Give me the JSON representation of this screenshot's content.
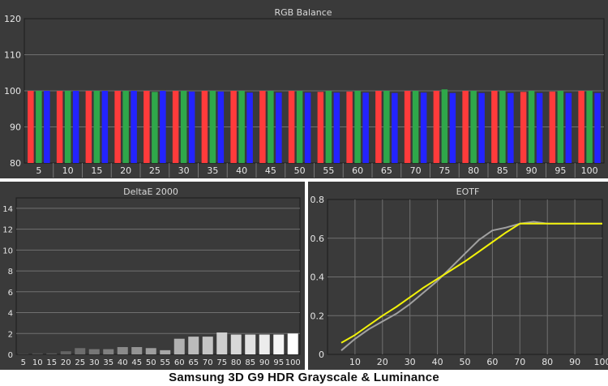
{
  "caption": "Samsung 3D G9 HDR Grayscale & Luminance",
  "chart_data": [
    {
      "type": "bar",
      "title": "RGB Balance",
      "categories": [
        "5",
        "10",
        "15",
        "20",
        "25",
        "30",
        "35",
        "40",
        "45",
        "50",
        "55",
        "60",
        "65",
        "70",
        "75",
        "80",
        "85",
        "90",
        "95",
        "100"
      ],
      "series": [
        {
          "color": "#ff3b3b",
          "values": [
            100,
            100,
            100,
            100,
            100,
            100,
            100,
            100,
            100,
            100,
            99.7,
            99.8,
            100,
            100,
            100,
            100,
            100,
            99.7,
            99.8,
            100
          ]
        },
        {
          "color": "#2fa84a",
          "values": [
            100,
            100,
            100,
            100,
            99.7,
            100,
            100,
            100,
            100,
            100,
            100,
            100,
            100,
            100,
            100.4,
            100,
            100,
            100,
            100,
            100
          ]
        },
        {
          "color": "#2323ff",
          "values": [
            100,
            100,
            100,
            100,
            100,
            99.8,
            99.8,
            99.5,
            99.5,
            99.5,
            99.5,
            99.5,
            99.4,
            99.5,
            99.4,
            99.4,
            99.4,
            99.4,
            99.4,
            99.4
          ]
        }
      ],
      "ylim": [
        80,
        120
      ],
      "yticks": [
        80,
        90,
        100,
        110,
        120
      ],
      "grid": true,
      "colors": {
        "background": "#3a3a3a",
        "grid": "#6e6e6e",
        "frame": "#1a1a1a"
      }
    },
    {
      "type": "bar",
      "title": "DeltaE 2000",
      "categories": [
        "5",
        "10",
        "15",
        "20",
        "25",
        "30",
        "35",
        "40",
        "45",
        "50",
        "55",
        "60",
        "65",
        "70",
        "75",
        "80",
        "85",
        "90",
        "95",
        "100"
      ],
      "values": [
        0.05,
        0.1,
        0.1,
        0.3,
        0.6,
        0.5,
        0.5,
        0.7,
        0.7,
        0.6,
        0.4,
        1.5,
        1.7,
        1.7,
        2.1,
        1.9,
        1.9,
        1.9,
        1.9,
        2.0
      ],
      "ylim": [
        0,
        15
      ],
      "yticks": [
        0,
        2,
        4,
        6,
        8,
        10,
        12,
        14
      ],
      "grid": true
    },
    {
      "type": "line",
      "title": "EOTF",
      "x": [
        5,
        10,
        15,
        20,
        25,
        30,
        35,
        40,
        45,
        50,
        55,
        60,
        65,
        70,
        75,
        80,
        85,
        90,
        95,
        100
      ],
      "series": [
        {
          "color": "#a0a0a0",
          "values": [
            0.02,
            0.08,
            0.13,
            0.17,
            0.21,
            0.26,
            0.32,
            0.38,
            0.45,
            0.52,
            0.59,
            0.64,
            0.655,
            0.675,
            0.685,
            0.675,
            0.675,
            0.675,
            0.675,
            0.675
          ]
        },
        {
          "color": "#f2f20a",
          "values": [
            0.06,
            0.1,
            0.15,
            0.2,
            0.245,
            0.295,
            0.345,
            0.39,
            0.435,
            0.48,
            0.53,
            0.58,
            0.63,
            0.675,
            0.675,
            0.675,
            0.675,
            0.675,
            0.675,
            0.675
          ]
        }
      ],
      "xlim": [
        0,
        100
      ],
      "ylim": [
        0,
        0.8
      ],
      "xticks": [
        10,
        20,
        30,
        40,
        50,
        60,
        70,
        80,
        90,
        100
      ],
      "yticks": [
        0,
        0.2,
        0.4,
        0.6,
        0.8
      ],
      "grid": true
    }
  ]
}
